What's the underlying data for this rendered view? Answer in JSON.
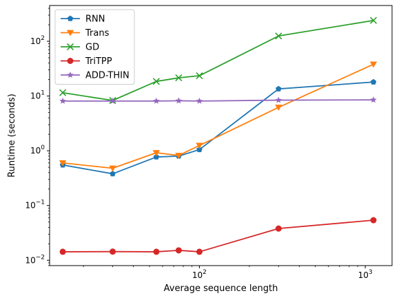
{
  "chart_data": {
    "type": "line",
    "xlabel": "Average sequence length",
    "ylabel": "Runtime (seconds)",
    "x_scale": "log",
    "y_scale": "log",
    "xlim": [
      12.5,
      1450
    ],
    "ylim": [
      0.008,
      450
    ],
    "x_ticks": [
      {
        "value": 100,
        "base": "10",
        "exp": "2"
      },
      {
        "value": 1000,
        "base": "10",
        "exp": "3"
      }
    ],
    "y_ticks": [
      {
        "value": 0.01,
        "base": "10",
        "exp": "−2"
      },
      {
        "value": 0.1,
        "base": "10",
        "exp": "−1"
      },
      {
        "value": 1,
        "base": "10",
        "exp": "0"
      },
      {
        "value": 10,
        "base": "10",
        "exp": "1"
      },
      {
        "value": 100,
        "base": "10",
        "exp": "2"
      }
    ],
    "grid": false,
    "legend_position": "top-left",
    "x": [
      15,
      30,
      55,
      75,
      100,
      300,
      1120
    ],
    "series": [
      {
        "name": "RNN",
        "color": "#1f77b4",
        "marker": "pentagon",
        "values": [
          0.55,
          0.38,
          0.77,
          0.8,
          1.05,
          13.5,
          18
        ]
      },
      {
        "name": "Trans",
        "color": "#ff7f0e",
        "marker": "triangle-down",
        "values": [
          0.6,
          0.48,
          0.92,
          0.82,
          1.25,
          6.2,
          38
        ]
      },
      {
        "name": "GD",
        "color": "#2ca02c",
        "marker": "x",
        "values": [
          11.5,
          8.3,
          18.5,
          21.5,
          23.5,
          125,
          240
        ]
      },
      {
        "name": "TriTPP",
        "color": "#d62728",
        "marker": "circle",
        "values": [
          0.0143,
          0.0144,
          0.0143,
          0.0152,
          0.0143,
          0.038,
          0.054
        ]
      },
      {
        "name": "ADD-THIN",
        "color": "#9467bd",
        "marker": "star",
        "values": [
          8.1,
          8.1,
          8.1,
          8.2,
          8.1,
          8.4,
          8.5
        ]
      }
    ]
  }
}
